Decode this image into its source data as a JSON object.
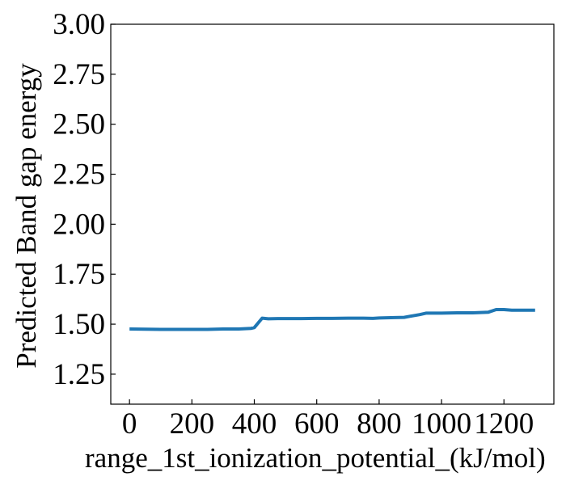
{
  "chart_data": {
    "type": "line",
    "title": "",
    "xlabel": "range_1st_ionization_potential_(kJ/mol)",
    "ylabel": "Predicted Band gap energy",
    "xlim": [
      -60,
      1360
    ],
    "ylim": [
      1.1,
      3.0
    ],
    "xticks": [
      0,
      200,
      400,
      600,
      800,
      1000,
      1200
    ],
    "xtick_labels": [
      "0",
      "200",
      "400",
      "600",
      "800",
      "1000",
      "1200"
    ],
    "yticks": [
      1.25,
      1.5,
      1.75,
      2.0,
      2.25,
      2.5,
      2.75,
      3.0
    ],
    "ytick_labels": [
      "1.25",
      "1.50",
      "1.75",
      "2.00",
      "2.25",
      "2.50",
      "2.75",
      "3.00"
    ],
    "grid": false,
    "series": [
      {
        "color": "#1f77b4",
        "x": [
          0,
          50,
          100,
          150,
          200,
          250,
          300,
          350,
          390,
          400,
          425,
          445,
          475,
          550,
          600,
          650,
          700,
          750,
          780,
          800,
          850,
          880,
          900,
          930,
          950,
          1000,
          1050,
          1100,
          1150,
          1175,
          1200,
          1225,
          1250,
          1300
        ],
        "values": [
          1.476,
          1.475,
          1.474,
          1.474,
          1.474,
          1.474,
          1.476,
          1.476,
          1.479,
          1.483,
          1.53,
          1.527,
          1.528,
          1.528,
          1.529,
          1.529,
          1.53,
          1.53,
          1.529,
          1.531,
          1.533,
          1.534,
          1.54,
          1.548,
          1.555,
          1.555,
          1.557,
          1.557,
          1.56,
          1.573,
          1.573,
          1.57,
          1.57,
          1.57
        ]
      }
    ]
  }
}
